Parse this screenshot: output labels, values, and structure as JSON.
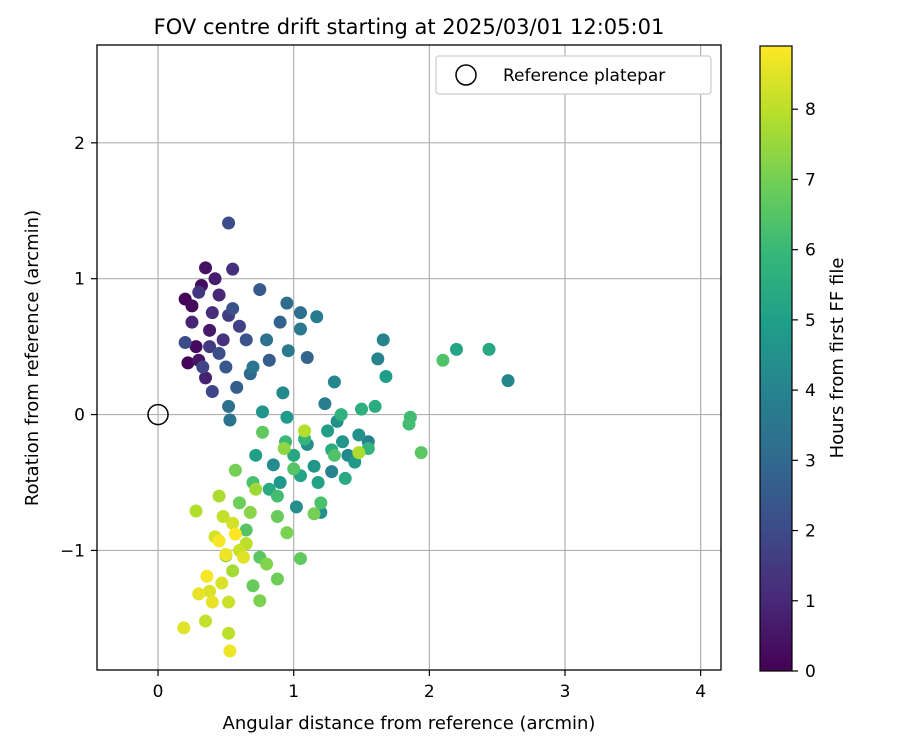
{
  "chart_data": {
    "type": "scatter",
    "title": "FOV centre drift starting at 2025/03/01 12:05:01",
    "xlabel": "Angular distance from reference (arcmin)",
    "ylabel": "Rotation from reference (arcmin)",
    "xlim": [
      -0.45,
      4.15
    ],
    "ylim": [
      -1.88,
      2.72
    ],
    "xticks": [
      0,
      1,
      2,
      3,
      4
    ],
    "yticks": [
      -1,
      0,
      1,
      2
    ],
    "ytick_labels": [
      "−1",
      "0",
      "1",
      "2"
    ],
    "grid": true,
    "legend": {
      "position": "top-right",
      "label": "Reference platepar"
    },
    "reference_point": {
      "x": 0.0,
      "y": 0.0
    },
    "colorbar": {
      "label": "Hours from first FF file",
      "colormap": "viridis",
      "range": [
        0,
        8.9
      ],
      "ticks": [
        0,
        1,
        2,
        3,
        4,
        5,
        6,
        7,
        8
      ],
      "colors": [
        "#440154",
        "#482878",
        "#3e4a89",
        "#31688e",
        "#26828e",
        "#1f9e89",
        "#35b779",
        "#6ece58",
        "#b5de2b",
        "#fde725"
      ]
    },
    "points": [
      {
        "x": 0.2,
        "y": 0.85,
        "t": 0.1
      },
      {
        "x": 0.22,
        "y": 0.38,
        "t": 0.1
      },
      {
        "x": 0.25,
        "y": 0.8,
        "t": 0.2
      },
      {
        "x": 0.28,
        "y": 0.5,
        "t": 0.2
      },
      {
        "x": 0.32,
        "y": 0.95,
        "t": 0.3
      },
      {
        "x": 0.35,
        "y": 1.08,
        "t": 0.4
      },
      {
        "x": 0.3,
        "y": 0.4,
        "t": 0.5
      },
      {
        "x": 0.38,
        "y": 0.62,
        "t": 0.6
      },
      {
        "x": 0.42,
        "y": 1.0,
        "t": 0.7
      },
      {
        "x": 0.35,
        "y": 0.27,
        "t": 0.8
      },
      {
        "x": 0.25,
        "y": 0.68,
        "t": 0.9
      },
      {
        "x": 0.45,
        "y": 0.88,
        "t": 1.0
      },
      {
        "x": 0.4,
        "y": 0.75,
        "t": 1.1
      },
      {
        "x": 0.55,
        "y": 1.07,
        "t": 1.2
      },
      {
        "x": 0.48,
        "y": 0.55,
        "t": 1.3
      },
      {
        "x": 0.3,
        "y": 0.9,
        "t": 1.4
      },
      {
        "x": 0.38,
        "y": 0.5,
        "t": 1.5
      },
      {
        "x": 0.52,
        "y": 0.73,
        "t": 1.6
      },
      {
        "x": 0.6,
        "y": 0.65,
        "t": 1.7
      },
      {
        "x": 0.33,
        "y": 0.35,
        "t": 1.8
      },
      {
        "x": 0.4,
        "y": 0.17,
        "t": 1.9
      },
      {
        "x": 0.52,
        "y": 1.41,
        "t": 2.0
      },
      {
        "x": 0.2,
        "y": 0.53,
        "t": 2.0
      },
      {
        "x": 0.45,
        "y": 0.45,
        "t": 2.1
      },
      {
        "x": 0.55,
        "y": 0.78,
        "t": 2.2
      },
      {
        "x": 0.65,
        "y": 0.55,
        "t": 2.3
      },
      {
        "x": 0.5,
        "y": 0.35,
        "t": 2.4
      },
      {
        "x": 0.75,
        "y": 0.92,
        "t": 2.5
      },
      {
        "x": 0.82,
        "y": 0.4,
        "t": 2.6
      },
      {
        "x": 0.58,
        "y": 0.2,
        "t": 2.7
      },
      {
        "x": 0.9,
        "y": 0.68,
        "t": 2.8
      },
      {
        "x": 1.1,
        "y": 0.42,
        "t": 2.9
      },
      {
        "x": 0.68,
        "y": 0.3,
        "t": 3.0
      },
      {
        "x": 0.95,
        "y": 0.82,
        "t": 3.1
      },
      {
        "x": 1.05,
        "y": 0.75,
        "t": 3.2
      },
      {
        "x": 0.8,
        "y": 0.55,
        "t": 3.3
      },
      {
        "x": 0.52,
        "y": 0.06,
        "t": 3.3
      },
      {
        "x": 0.53,
        "y": -0.04,
        "t": 3.4
      },
      {
        "x": 0.7,
        "y": 0.35,
        "t": 3.5
      },
      {
        "x": 0.96,
        "y": 0.47,
        "t": 3.6
      },
      {
        "x": 1.05,
        "y": 0.63,
        "t": 3.6
      },
      {
        "x": 1.17,
        "y": 0.72,
        "t": 3.7
      },
      {
        "x": 1.23,
        "y": 0.08,
        "t": 3.8
      },
      {
        "x": 1.28,
        "y": -0.42,
        "t": 3.9
      },
      {
        "x": 1.55,
        "y": -0.2,
        "t": 3.9
      },
      {
        "x": 1.62,
        "y": 0.41,
        "t": 4.0
      },
      {
        "x": 1.66,
        "y": 0.55,
        "t": 4.0
      },
      {
        "x": 2.58,
        "y": 0.25,
        "t": 4.1
      },
      {
        "x": 1.3,
        "y": 0.24,
        "t": 4.1
      },
      {
        "x": 0.92,
        "y": 0.16,
        "t": 4.2
      },
      {
        "x": 1.4,
        "y": -0.3,
        "t": 4.2
      },
      {
        "x": 1.1,
        "y": -0.22,
        "t": 4.3
      },
      {
        "x": 0.85,
        "y": -0.37,
        "t": 4.3
      },
      {
        "x": 1.02,
        "y": -0.68,
        "t": 4.4
      },
      {
        "x": 1.2,
        "y": -0.72,
        "t": 4.4
      },
      {
        "x": 1.48,
        "y": -0.15,
        "t": 4.5
      },
      {
        "x": 1.32,
        "y": -0.05,
        "t": 4.5
      },
      {
        "x": 0.77,
        "y": 0.02,
        "t": 4.6
      },
      {
        "x": 1.36,
        "y": -0.2,
        "t": 4.6
      },
      {
        "x": 0.9,
        "y": -0.5,
        "t": 4.7
      },
      {
        "x": 1.15,
        "y": -0.38,
        "t": 4.7
      },
      {
        "x": 0.95,
        "y": -0.02,
        "t": 4.8
      },
      {
        "x": 1.45,
        "y": -0.35,
        "t": 4.8
      },
      {
        "x": 1.25,
        "y": -0.12,
        "t": 4.9
      },
      {
        "x": 1.68,
        "y": 0.28,
        "t": 5.0
      },
      {
        "x": 0.72,
        "y": -0.3,
        "t": 5.0
      },
      {
        "x": 1.05,
        "y": -0.45,
        "t": 5.1
      },
      {
        "x": 1.18,
        "y": -0.5,
        "t": 5.1
      },
      {
        "x": 2.2,
        "y": 0.48,
        "t": 5.2
      },
      {
        "x": 2.44,
        "y": 0.48,
        "t": 5.3
      },
      {
        "x": 1.0,
        "y": -0.3,
        "t": 5.3
      },
      {
        "x": 1.38,
        "y": -0.47,
        "t": 5.4
      },
      {
        "x": 0.82,
        "y": -0.55,
        "t": 5.4
      },
      {
        "x": 1.6,
        "y": 0.06,
        "t": 5.5
      },
      {
        "x": 1.28,
        "y": -0.26,
        "t": 5.5
      },
      {
        "x": 1.5,
        "y": 0.04,
        "t": 5.6
      },
      {
        "x": 1.35,
        "y": 0.0,
        "t": 5.7
      },
      {
        "x": 1.55,
        "y": -0.25,
        "t": 5.8
      },
      {
        "x": 1.08,
        "y": -0.18,
        "t": 5.9
      },
      {
        "x": 0.94,
        "y": -0.2,
        "t": 6.0
      },
      {
        "x": 1.86,
        "y": -0.02,
        "t": 6.1
      },
      {
        "x": 0.88,
        "y": -0.6,
        "t": 6.2
      },
      {
        "x": 1.85,
        "y": -0.07,
        "t": 6.2
      },
      {
        "x": 1.2,
        "y": -0.65,
        "t": 6.3
      },
      {
        "x": 0.7,
        "y": -0.5,
        "t": 6.3
      },
      {
        "x": 2.1,
        "y": 0.4,
        "t": 6.4
      },
      {
        "x": 1.3,
        "y": -0.3,
        "t": 6.4
      },
      {
        "x": 0.65,
        "y": -0.85,
        "t": 6.5
      },
      {
        "x": 1.0,
        "y": -0.4,
        "t": 6.5
      },
      {
        "x": 1.94,
        "y": -0.28,
        "t": 6.6
      },
      {
        "x": 0.75,
        "y": -1.05,
        "t": 6.6
      },
      {
        "x": 1.05,
        "y": -1.06,
        "t": 6.7
      },
      {
        "x": 0.77,
        "y": -0.13,
        "t": 6.7
      },
      {
        "x": 0.88,
        "y": -0.75,
        "t": 6.8
      },
      {
        "x": 0.7,
        "y": -1.26,
        "t": 6.8
      },
      {
        "x": 0.88,
        "y": -1.21,
        "t": 6.9
      },
      {
        "x": 0.6,
        "y": -0.65,
        "t": 6.9
      },
      {
        "x": 0.57,
        "y": -0.41,
        "t": 7.0
      },
      {
        "x": 1.15,
        "y": -0.73,
        "t": 7.0
      },
      {
        "x": 0.95,
        "y": -0.87,
        "t": 7.1
      },
      {
        "x": 0.75,
        "y": -1.37,
        "t": 7.1
      },
      {
        "x": 0.8,
        "y": -1.1,
        "t": 7.2
      },
      {
        "x": 0.68,
        "y": -0.72,
        "t": 7.3
      },
      {
        "x": 0.93,
        "y": -0.25,
        "t": 7.4
      },
      {
        "x": 0.5,
        "y": -1.04,
        "t": 7.5
      },
      {
        "x": 0.72,
        "y": -0.55,
        "t": 7.6
      },
      {
        "x": 0.55,
        "y": -1.15,
        "t": 7.7
      },
      {
        "x": 0.45,
        "y": -0.6,
        "t": 7.8
      },
      {
        "x": 1.48,
        "y": -0.28,
        "t": 7.8
      },
      {
        "x": 1.08,
        "y": -0.12,
        "t": 7.9
      },
      {
        "x": 0.28,
        "y": -0.71,
        "t": 7.9
      },
      {
        "x": 0.52,
        "y": -1.61,
        "t": 8.0
      },
      {
        "x": 0.65,
        "y": -0.95,
        "t": 8.0
      },
      {
        "x": 0.48,
        "y": -0.75,
        "t": 8.1
      },
      {
        "x": 0.35,
        "y": -1.52,
        "t": 8.1
      },
      {
        "x": 0.6,
        "y": -1.0,
        "t": 8.2
      },
      {
        "x": 0.52,
        "y": -1.38,
        "t": 8.2
      },
      {
        "x": 0.42,
        "y": -0.9,
        "t": 8.3
      },
      {
        "x": 0.55,
        "y": -0.8,
        "t": 8.3
      },
      {
        "x": 0.38,
        "y": -1.3,
        "t": 8.4
      },
      {
        "x": 0.47,
        "y": -1.24,
        "t": 8.4
      },
      {
        "x": 0.63,
        "y": -1.05,
        "t": 8.5
      },
      {
        "x": 0.19,
        "y": -1.57,
        "t": 8.5
      },
      {
        "x": 0.4,
        "y": -1.38,
        "t": 8.6
      },
      {
        "x": 0.3,
        "y": -1.32,
        "t": 8.6
      },
      {
        "x": 0.5,
        "y": -1.03,
        "t": 8.7
      },
      {
        "x": 0.53,
        "y": -1.74,
        "t": 8.7
      },
      {
        "x": 0.36,
        "y": -1.19,
        "t": 8.8
      },
      {
        "x": 0.45,
        "y": -0.93,
        "t": 8.8
      },
      {
        "x": 0.57,
        "y": -0.88,
        "t": 8.9
      }
    ]
  }
}
